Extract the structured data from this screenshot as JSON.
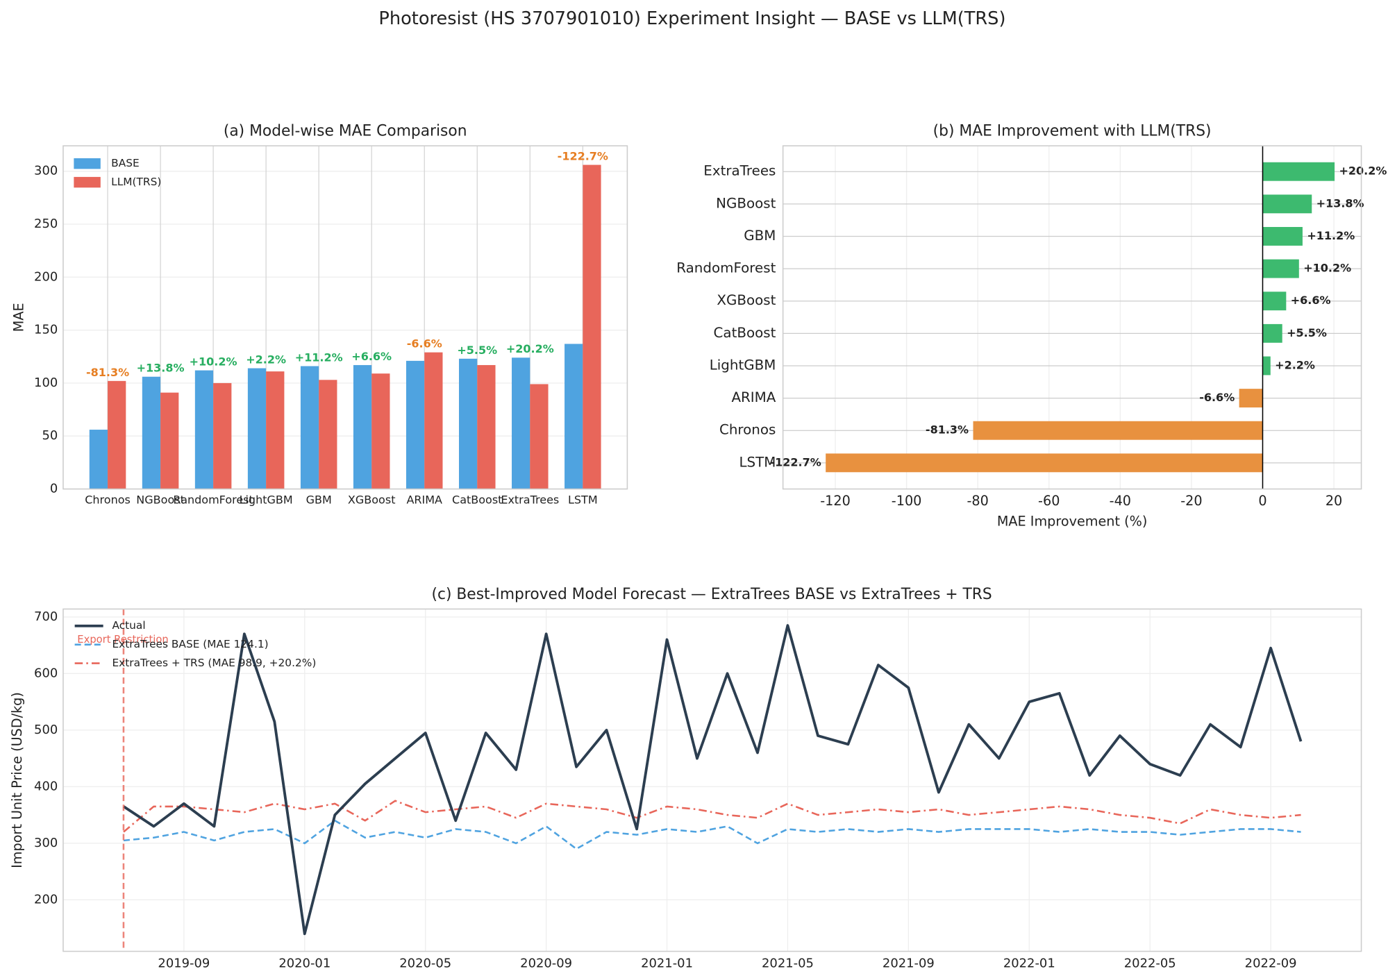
{
  "title": "Photoresist (HS 3707901010) Experiment Insight — BASE vs LLM(TRS)",
  "chart_data": [
    {
      "type": "bar",
      "title": "(a) Model-wise MAE Comparison",
      "y_label": "MAE",
      "categories": [
        "Chronos",
        "NGBoost",
        "RandomForest",
        "LightGBM",
        "GBM",
        "XGBoost",
        "ARIMA",
        "CatBoost",
        "ExtraTrees",
        "LSTM"
      ],
      "series": [
        {
          "name": "BASE",
          "color": "#4fa3e0",
          "values": [
            56,
            106,
            112,
            114,
            116,
            117,
            121,
            123,
            124,
            137
          ]
        },
        {
          "name": "LLM(TRS)",
          "color": "#e8665a",
          "values": [
            102,
            91,
            100,
            111,
            103,
            109,
            129,
            117,
            99,
            306
          ]
        }
      ],
      "annotations": [
        {
          "text": "-81.3%",
          "color": "#e67e22"
        },
        {
          "text": "+13.8%",
          "color": "#27ae60"
        },
        {
          "text": "+10.2%",
          "color": "#27ae60"
        },
        {
          "text": "+2.2%",
          "color": "#27ae60"
        },
        {
          "text": "+11.2%",
          "color": "#27ae60"
        },
        {
          "text": "+6.6%",
          "color": "#27ae60"
        },
        {
          "text": "-6.6%",
          "color": "#e67e22"
        },
        {
          "text": "+5.5%",
          "color": "#27ae60"
        },
        {
          "text": "+20.2%",
          "color": "#27ae60"
        },
        {
          "text": "-122.7%",
          "color": "#e67e22"
        }
      ],
      "ylim": [
        0,
        324
      ],
      "yticks": [
        0,
        50,
        100,
        150,
        200,
        250,
        300
      ],
      "grid": true,
      "legend": "upper left"
    },
    {
      "type": "barh",
      "title": "(b) MAE Improvement with LLM(TRS)",
      "x_label": "MAE Improvement (%)",
      "categories": [
        "ExtraTrees",
        "NGBoost",
        "GBM",
        "RandomForest",
        "XGBoost",
        "CatBoost",
        "LightGBM",
        "ARIMA",
        "Chronos",
        "LSTM"
      ],
      "values": [
        20.2,
        13.8,
        11.2,
        10.2,
        6.6,
        5.5,
        2.2,
        -6.6,
        -81.3,
        -122.7
      ],
      "value_labels": [
        "+20.2%",
        "+13.8%",
        "+11.2%",
        "+10.2%",
        "+6.6%",
        "+5.5%",
        "+2.2%",
        "-6.6%",
        "-81.3%",
        "-122.7%"
      ],
      "colors": [
        "#3dba6f",
        "#3dba6f",
        "#3dba6f",
        "#3dba6f",
        "#3dba6f",
        "#3dba6f",
        "#3dba6f",
        "#e8913f",
        "#e8913f",
        "#e8913f"
      ],
      "xlim": [
        -134.7,
        27.7
      ],
      "xticks": [
        -120,
        -100,
        -80,
        -60,
        -40,
        -20,
        0,
        20
      ],
      "grid": true
    },
    {
      "type": "line",
      "title": "(c) Best-Improved Model Forecast — ExtraTrees BASE vs ExtraTrees + TRS",
      "y_label": "Import Unit Price (USD/kg)",
      "x": [
        "2019-07",
        "2019-08",
        "2019-09",
        "2019-10",
        "2019-11",
        "2019-12",
        "2020-01",
        "2020-02",
        "2020-03",
        "2020-04",
        "2020-05",
        "2020-06",
        "2020-07",
        "2020-08",
        "2020-09",
        "2020-10",
        "2020-11",
        "2020-12",
        "2021-01",
        "2021-02",
        "2021-03",
        "2021-04",
        "2021-05",
        "2021-06",
        "2021-07",
        "2021-08",
        "2021-09",
        "2021-10",
        "2021-11",
        "2021-12",
        "2022-01",
        "2022-02",
        "2022-03",
        "2022-04",
        "2022-05",
        "2022-06",
        "2022-07",
        "2022-08",
        "2022-09",
        "2022-10"
      ],
      "series": [
        {
          "name": "Actual",
          "color": "#2c3e50",
          "style": "solid",
          "values": [
            365,
            330,
            370,
            330,
            670,
            515,
            140,
            350,
            405,
            450,
            495,
            340,
            495,
            430,
            670,
            435,
            500,
            325,
            660,
            450,
            600,
            460,
            685,
            490,
            475,
            615,
            575,
            390,
            510,
            450,
            550,
            565,
            420,
            490,
            440,
            420,
            510,
            470,
            645,
            480
          ]
        },
        {
          "name": "ExtraTrees BASE (MAE 124.1)",
          "color": "#4fa3e0",
          "style": "dashed",
          "values": [
            305,
            310,
            320,
            305,
            320,
            325,
            300,
            340,
            310,
            320,
            310,
            325,
            320,
            300,
            330,
            290,
            320,
            315,
            325,
            320,
            330,
            300,
            325,
            320,
            325,
            320,
            325,
            320,
            325,
            325,
            325,
            320,
            325,
            320,
            320,
            315,
            320,
            325,
            325,
            320
          ]
        },
        {
          "name": "ExtraTrees + TRS (MAE 98.9, +20.2%)",
          "color": "#e8665a",
          "style": "dashdot",
          "values": [
            320,
            365,
            365,
            360,
            355,
            370,
            360,
            370,
            340,
            375,
            355,
            360,
            365,
            345,
            370,
            365,
            360,
            345,
            365,
            360,
            350,
            345,
            370,
            350,
            355,
            360,
            355,
            360,
            350,
            355,
            360,
            365,
            360,
            350,
            345,
            335,
            360,
            350,
            345,
            350
          ]
        }
      ],
      "vlines": [
        {
          "x": "2019-07",
          "label": "Export Restriction",
          "color": "#e8665a"
        }
      ],
      "xlim": [
        "2019-05",
        "2022-12"
      ],
      "xticks": [
        "2019-09",
        "2020-01",
        "2020-05",
        "2020-09",
        "2021-01",
        "2021-05",
        "2021-09",
        "2022-01",
        "2022-05",
        "2022-09"
      ],
      "ylim": [
        109,
        714
      ],
      "yticks": [
        200,
        300,
        400,
        500,
        600,
        700
      ],
      "grid": true,
      "legend": "upper left"
    }
  ]
}
